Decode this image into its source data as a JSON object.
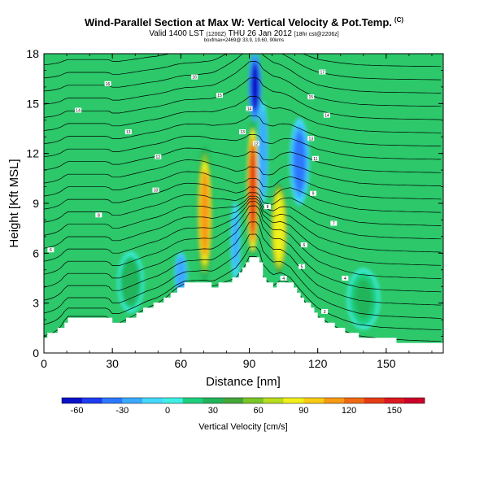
{
  "header": {
    "title": "Wind-Parallel Section at Max W: Vertical Velocity & Pot.Temp.",
    "title_mark": "(C)",
    "valid_prefix": "Valid 1400 LST",
    "valid_small": "(1200Z)",
    "valid_date": "THU 26 Jan 2012",
    "valid_suffix_small": "[18hr cst@2206z]",
    "meta_line": "boxfmax=2469@ 33.9, 19.60, 90kms"
  },
  "chart_data": {
    "type": "heatmap",
    "title": "Wind-Parallel Section at Max W: Vertical Velocity & Pot.Temp.",
    "xlabel": "Distance [nm]",
    "ylabel": "Height [Kft MSL]",
    "xlim": [
      0,
      175
    ],
    "ylim": [
      0,
      18
    ],
    "x_ticks": [
      0,
      30,
      60,
      90,
      120,
      150
    ],
    "y_ticks": [
      0,
      3,
      6,
      9,
      12,
      15,
      18
    ],
    "colorbar": {
      "label": "Vertical Velocity [cm/s]",
      "ticks": [
        -60,
        -30,
        0,
        30,
        60,
        90,
        120,
        150
      ],
      "range": [
        -70,
        170
      ],
      "colors": [
        "#0a10c8",
        "#1e3cf0",
        "#2d78ff",
        "#3aaaff",
        "#44d8ff",
        "#3ff0e4",
        "#1ecf7e",
        "#22b45a",
        "#43a838",
        "#78c628",
        "#b8dc1e",
        "#f0f01a",
        "#f8cc16",
        "#f89a14",
        "#f06a14",
        "#e53c16",
        "#dc1820",
        "#cc0028"
      ]
    },
    "terrain_profile": [
      [
        0,
        1.0
      ],
      [
        4,
        1.2
      ],
      [
        7,
        1.5
      ],
      [
        10,
        2.2
      ],
      [
        28,
        2.2
      ],
      [
        30,
        1.8
      ],
      [
        33,
        1.8
      ],
      [
        36,
        2.0
      ],
      [
        40,
        2.3
      ],
      [
        45,
        2.7
      ],
      [
        50,
        3.0
      ],
      [
        54,
        3.4
      ],
      [
        58,
        3.9
      ],
      [
        62,
        4.2
      ],
      [
        70,
        4.2
      ],
      [
        74,
        4.0
      ],
      [
        78,
        4.2
      ],
      [
        84,
        4.5
      ],
      [
        88,
        5.2
      ],
      [
        90,
        5.8
      ],
      [
        94,
        5.8
      ],
      [
        96,
        4.6
      ],
      [
        100,
        4.0
      ],
      [
        104,
        4.4
      ],
      [
        108,
        4.2
      ],
      [
        112,
        3.5
      ],
      [
        116,
        2.8
      ],
      [
        120,
        2.2
      ],
      [
        126,
        1.7
      ],
      [
        132,
        1.3
      ],
      [
        138,
        1.0
      ],
      [
        148,
        0.8
      ],
      [
        160,
        0.7
      ],
      [
        175,
        0.6
      ]
    ],
    "velocity_bands": [
      {
        "x": 70.5,
        "y0": 4.5,
        "y1": 12.3,
        "width": 5,
        "w": 110
      },
      {
        "x": 91.5,
        "y0": 5.8,
        "y1": 13.8,
        "width": 4,
        "w": 140
      },
      {
        "x": 103.0,
        "y0": 4.5,
        "y1": 10.5,
        "width": 6,
        "w": 80
      },
      {
        "x": 92.5,
        "y0": 14.0,
        "y1": 18.0,
        "width": 4,
        "w": -60
      },
      {
        "x": 112.0,
        "y0": 9.0,
        "y1": 14.0,
        "width": 6,
        "w": -40
      },
      {
        "x": 96.0,
        "y0": 9.0,
        "y1": 15.0,
        "width": 3,
        "w": -30
      },
      {
        "x": 60.0,
        "y0": 3.5,
        "y1": 6.0,
        "width": 4,
        "w": -30
      },
      {
        "x": 84.0,
        "y0": 4.5,
        "y1": 9.0,
        "width": 3,
        "w": -20
      },
      {
        "x": 38.0,
        "y0": 2.5,
        "y1": 6.0,
        "width": 8,
        "w": 30
      },
      {
        "x": 140.0,
        "y0": 1.5,
        "y1": 5.0,
        "width": 10,
        "w": 25
      }
    ],
    "isentrope_labels": [
      {
        "x": 3,
        "y": 6.2,
        "text": "6"
      },
      {
        "x": 24,
        "y": 8.3,
        "text": "8"
      },
      {
        "x": 49,
        "y": 9.8,
        "text": "10"
      },
      {
        "x": 50,
        "y": 11.8,
        "text": "12"
      },
      {
        "x": 37,
        "y": 13.3,
        "text": "13"
      },
      {
        "x": 15,
        "y": 14.6,
        "text": "14"
      },
      {
        "x": 28,
        "y": 16.2,
        "text": "16"
      },
      {
        "x": 66,
        "y": 16.6,
        "text": "16"
      },
      {
        "x": 77,
        "y": 15.5,
        "text": "15"
      },
      {
        "x": 87,
        "y": 13.3,
        "text": "13"
      },
      {
        "x": 90,
        "y": 14.7,
        "text": "14"
      },
      {
        "x": 93,
        "y": 12.6,
        "text": "12"
      },
      {
        "x": 98,
        "y": 8.8,
        "text": "8"
      },
      {
        "x": 105,
        "y": 4.5,
        "text": "4"
      },
      {
        "x": 114,
        "y": 6.5,
        "text": "6"
      },
      {
        "x": 113,
        "y": 5.2,
        "text": "5"
      },
      {
        "x": 118,
        "y": 9.6,
        "text": "9"
      },
      {
        "x": 119,
        "y": 11.7,
        "text": "11"
      },
      {
        "x": 117,
        "y": 12.9,
        "text": "13"
      },
      {
        "x": 117,
        "y": 15.4,
        "text": "15"
      },
      {
        "x": 124,
        "y": 14.3,
        "text": "14"
      },
      {
        "x": 127,
        "y": 7.8,
        "text": "7"
      },
      {
        "x": 132,
        "y": 4.5,
        "text": "4"
      },
      {
        "x": 123,
        "y": 2.5,
        "text": "3"
      },
      {
        "x": 122,
        "y": 16.9,
        "text": "17"
      }
    ],
    "isentrope_levels": [
      0.6,
      1.3,
      2.0,
      2.8,
      3.6,
      4.4,
      5.2,
      6.0,
      6.8,
      7.6,
      8.4,
      9.2,
      10.0,
      10.8,
      11.6,
      12.4,
      13.2,
      14.0,
      14.8,
      15.6,
      16.4,
      17.2
    ]
  },
  "colors": {
    "background": "#ffffff",
    "field_base": "#2cc86a",
    "terrain": "#ffffff",
    "contour": "#000000"
  }
}
